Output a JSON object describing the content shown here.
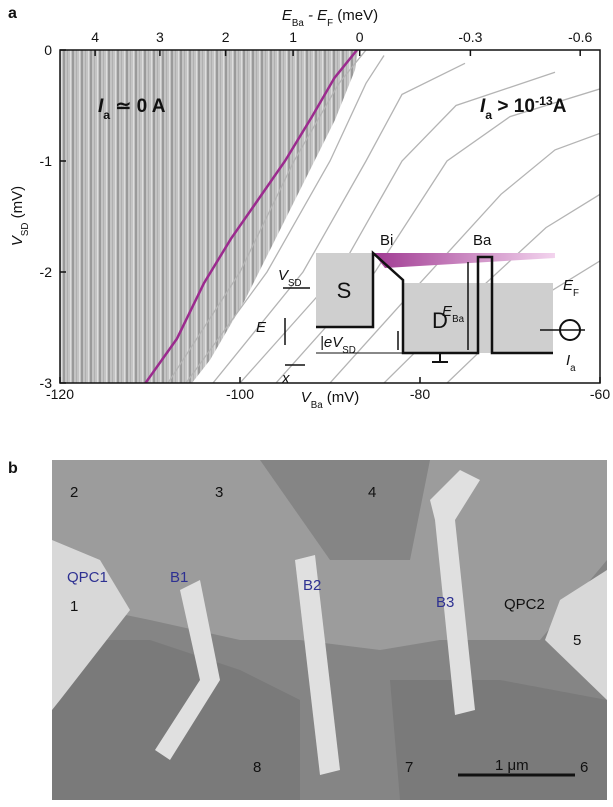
{
  "panel_a": {
    "label": "a"
  },
  "panel_b": {
    "label": "b",
    "labels": [
      {
        "text": "2",
        "color": "#111"
      },
      {
        "text": "3",
        "color": "#111"
      },
      {
        "text": "4",
        "color": "#111"
      },
      {
        "text": "QPC1",
        "color": "#2e3192"
      },
      {
        "text": "B1",
        "color": "#2e3192"
      },
      {
        "text": "B2",
        "color": "#2e3192"
      },
      {
        "text": "B3",
        "color": "#2e3192"
      },
      {
        "text": "QPC2",
        "color": "#111"
      },
      {
        "text": "1",
        "color": "#111"
      },
      {
        "text": "5",
        "color": "#111"
      },
      {
        "text": "8",
        "color": "#111"
      },
      {
        "text": "7",
        "color": "#111"
      },
      {
        "text": "6",
        "color": "#111"
      },
      {
        "text": "1 μm",
        "color": "#111"
      }
    ]
  },
  "chart_data": {
    "type": "line",
    "xlabel": {
      "symbol": "V",
      "subscript": "Ba",
      "unit": " (mV)"
    },
    "ylabel": {
      "symbol": "V",
      "subscript": "SD",
      "unit": " (mV)"
    },
    "x2label": {
      "symbol": "E",
      "subscript": "Ba",
      "middle": " - E",
      "subscript2": "F",
      "unit": " (meV)"
    },
    "xlim": [
      -120,
      -60
    ],
    "xticks": [
      -120,
      -100,
      -80,
      -60
    ],
    "ylim": [
      -3,
      0
    ],
    "yticks": [
      -3,
      -2,
      -1,
      0
    ],
    "x2ticks": [
      {
        "value": -116.1,
        "label": "4"
      },
      {
        "value": -108.9,
        "label": "3"
      },
      {
        "value": -101.6,
        "label": "2"
      },
      {
        "value": -94.1,
        "label": "1"
      },
      {
        "value": -86.7,
        "label": "0"
      },
      {
        "value": -74.4,
        "label": "-0.3"
      },
      {
        "value": -62.2,
        "label": "-0.6"
      }
    ],
    "annotations": [
      {
        "symbol": "I",
        "subscript": "a",
        "text": " ≃ 0 A"
      },
      {
        "symbol": "I",
        "subscript": "a",
        "text": " > 10",
        "superscript": "-13",
        "unit": "A"
      }
    ],
    "inset_labels": {
      "source": "S",
      "dot": "D",
      "barrier_in": "Bi",
      "barrier_a": "Ba",
      "fermi": {
        "symbol": "E",
        "subscript": "F"
      },
      "bias": {
        "symbol": "V",
        "subscript": "SD"
      },
      "energy": "E",
      "position": "x",
      "bias_energy": {
        "symbol": "|eV",
        "subscript": "SD"
      },
      "barrier_energy": {
        "symbol": "E",
        "subscript": "Ba"
      },
      "current": {
        "symbol": "I",
        "subscript": "a"
      }
    },
    "series": [
      {
        "color": "#b4b4b4",
        "x": [
          -108,
          -100,
          -94,
          -89,
          -86
        ],
        "values": [
          -3,
          -2,
          -1,
          -0.3,
          0
        ]
      },
      {
        "color": "#b4b4b4",
        "x": [
          -106,
          -97,
          -90,
          -86,
          -84
        ],
        "values": [
          -3,
          -2,
          -1,
          -0.3,
          -0.05
        ]
      },
      {
        "color": "#b4b4b4",
        "x": [
          -103,
          -93,
          -86,
          -82,
          -75
        ],
        "values": [
          -3,
          -2,
          -1,
          -0.4,
          -0.12
        ]
      },
      {
        "color": "#b4b4b4",
        "x": [
          -100,
          -89,
          -82,
          -76,
          -65
        ],
        "values": [
          -3,
          -2,
          -1,
          -0.5,
          -0.2
        ]
      },
      {
        "color": "#b4b4b4",
        "x": [
          -96,
          -85,
          -77,
          -70,
          -60
        ],
        "values": [
          -3,
          -2,
          -1,
          -0.6,
          -0.35
        ]
      },
      {
        "color": "#b4b4b4",
        "x": [
          -90,
          -80,
          -71,
          -65,
          -60
        ],
        "values": [
          -3,
          -2.1,
          -1.3,
          -0.9,
          -0.75
        ]
      },
      {
        "color": "#b4b4b4",
        "x": [
          -84,
          -74,
          -66,
          -60
        ],
        "values": [
          -3,
          -2.2,
          -1.6,
          -1.3
        ]
      },
      {
        "color": "#b4b4b4",
        "x": [
          -77,
          -68,
          -60
        ],
        "values": [
          -3,
          -2.3,
          -1.9
        ]
      },
      {
        "color": "#9b2b8e",
        "x": [
          -110.5,
          -107,
          -104,
          -101,
          -98,
          -95,
          -92,
          -89.5,
          -87
        ],
        "values": [
          -3,
          -2.6,
          -2.1,
          -1.7,
          -1.35,
          -1,
          -0.6,
          -0.25,
          0
        ]
      }
    ]
  }
}
